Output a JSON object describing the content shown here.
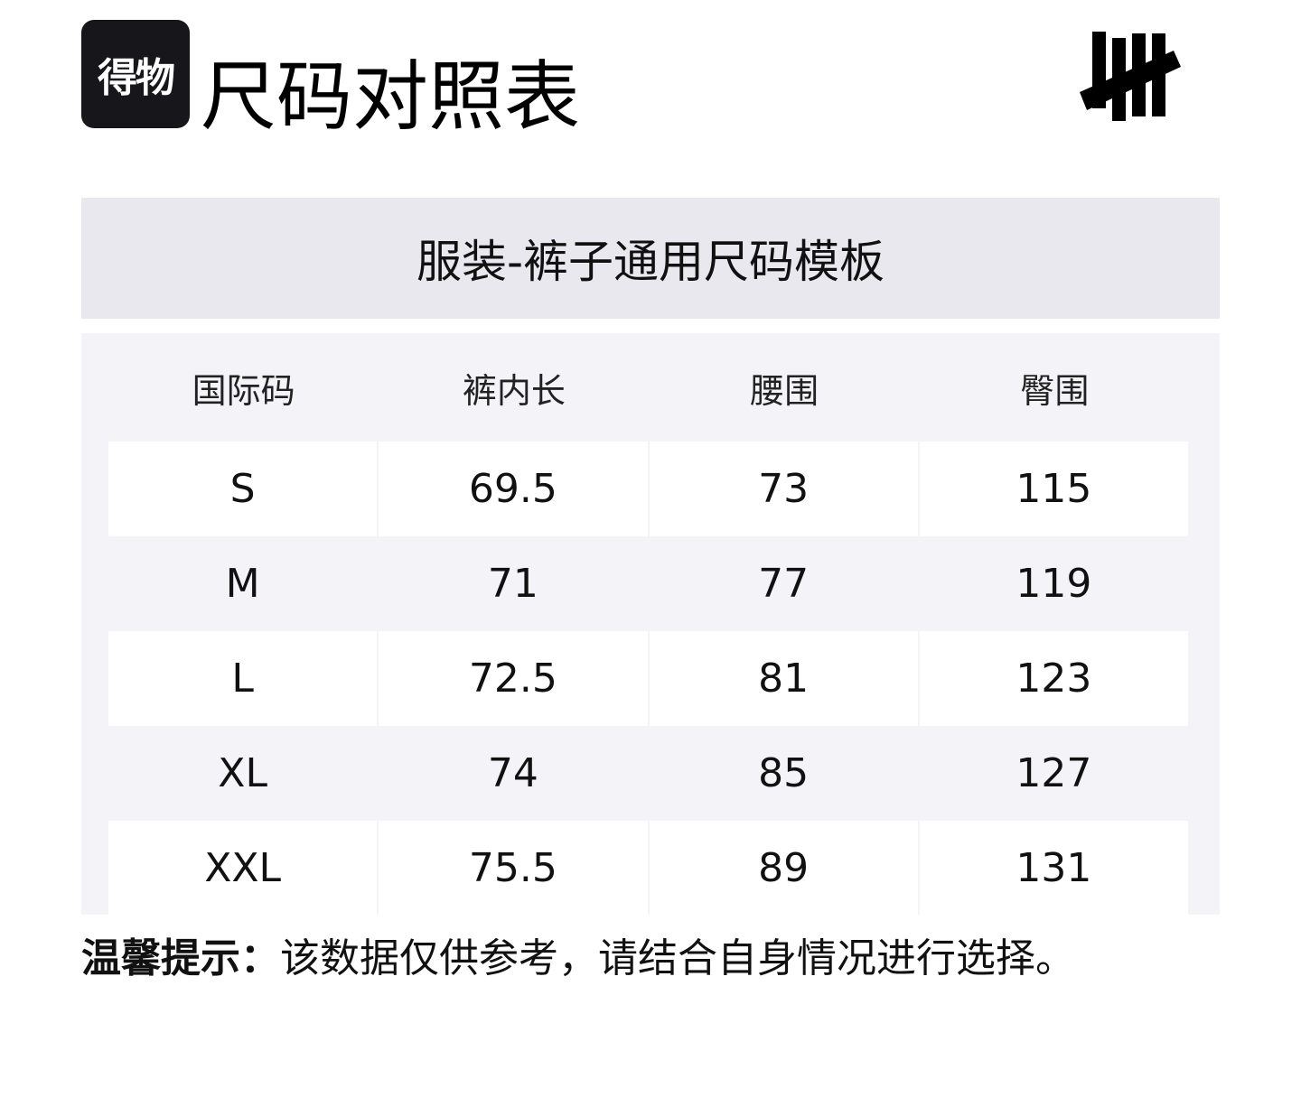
{
  "header": {
    "logo_text": "得物",
    "title": "尺码对照表",
    "brand_logo_icon": "five-tally-marks-logo"
  },
  "band": {
    "title": "服装-裤子通用尺码模板"
  },
  "table": {
    "columns": [
      "国际码",
      "裤内长",
      "腰围",
      "臀围"
    ],
    "rows": [
      [
        "S",
        "69.5",
        "73",
        "115"
      ],
      [
        "M",
        "71",
        "77",
        "119"
      ],
      [
        "L",
        "72.5",
        "81",
        "123"
      ],
      [
        "XL",
        "74",
        "85",
        "127"
      ],
      [
        "XXL",
        "75.5",
        "89",
        "131"
      ]
    ]
  },
  "tip": {
    "label": "温馨提示：",
    "text": "该数据仅供参考，请结合自身情况进行选择。"
  }
}
